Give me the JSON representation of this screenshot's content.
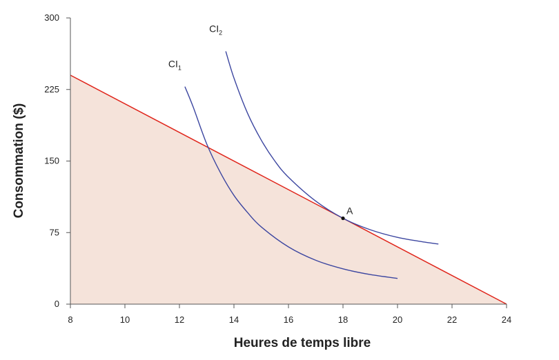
{
  "chart_data": {
    "type": "line",
    "xlabel": "Heures de temps libre",
    "ylabel": "Consommation ($)",
    "xlim": [
      8,
      24
    ],
    "ylim": [
      0,
      300
    ],
    "xticks": [
      8,
      10,
      12,
      14,
      16,
      18,
      20,
      22,
      24
    ],
    "yticks": [
      0,
      75,
      150,
      225,
      300
    ],
    "colors": {
      "budget_line": "#e0251b",
      "feasible_fill": "#f5e3da",
      "indifference_curves": "#3c46a0",
      "axis": "#555555"
    },
    "budget_line": {
      "x": [
        8,
        24
      ],
      "y": [
        240,
        0
      ],
      "fill_below": true
    },
    "series": [
      {
        "name_main": "CI",
        "name_sub": "1",
        "x": [
          12.2,
          12.5,
          13,
          13.5,
          14,
          14.5,
          15,
          16,
          17,
          18,
          19,
          20
        ],
        "y": [
          228,
          207,
          168,
          138,
          114,
          96,
          81,
          60,
          46,
          37,
          31,
          27
        ]
      },
      {
        "name_main": "CI",
        "name_sub": "2",
        "x": [
          13.7,
          14,
          14.5,
          15,
          15.5,
          16,
          17,
          18,
          19,
          20,
          21,
          21.5
        ],
        "y": [
          265,
          237,
          200,
          172,
          150,
          133,
          108,
          90,
          78,
          70,
          65,
          63
        ]
      }
    ],
    "points": [
      {
        "label": "A",
        "x": 18,
        "y": 90
      }
    ]
  }
}
